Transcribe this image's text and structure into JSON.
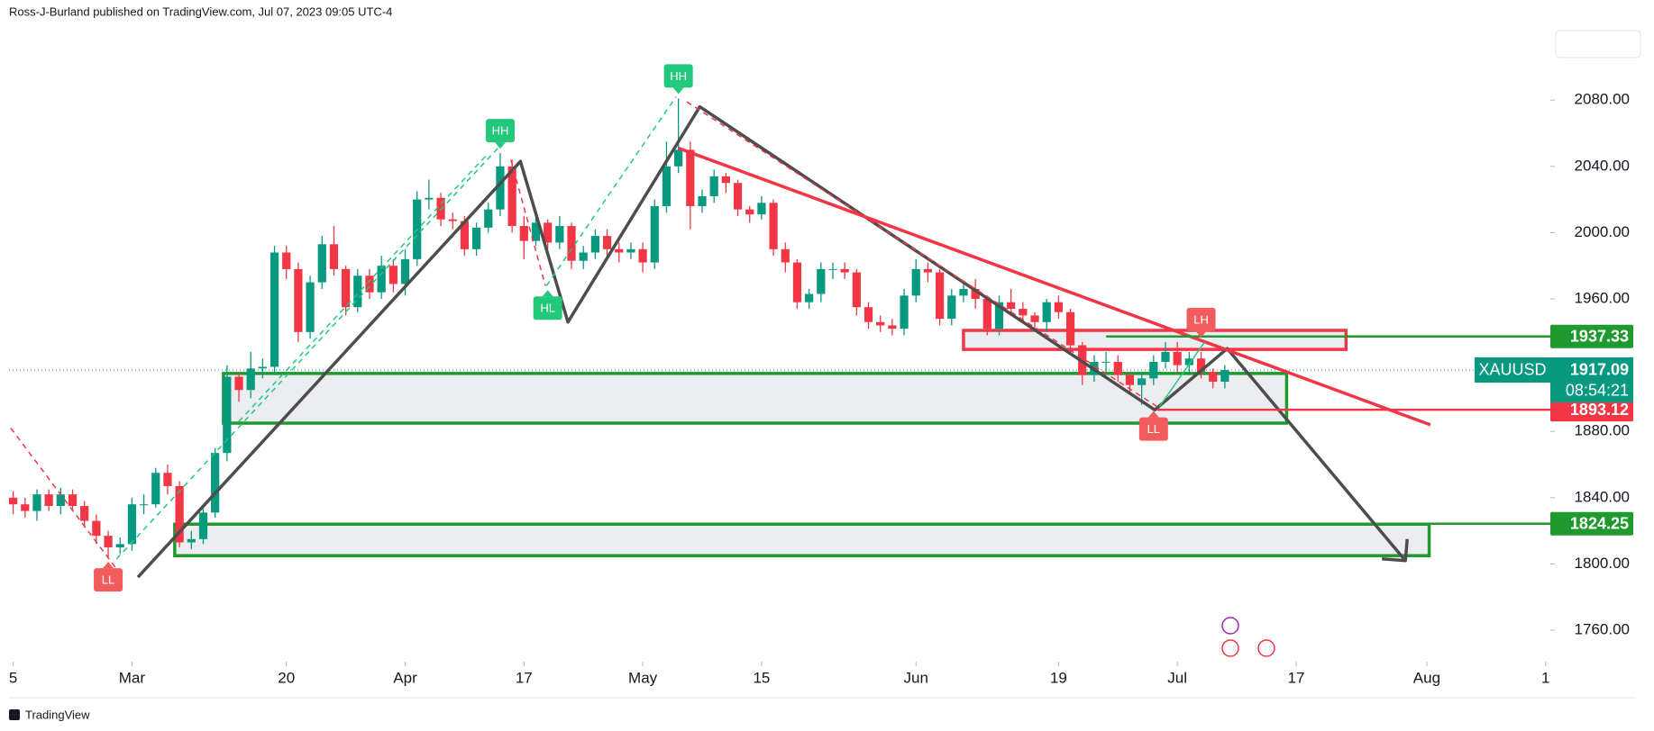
{
  "header": {
    "byline": "Ross-J-Burland published on TradingView.com, Jul 07, 2023 09:05 UTC-4"
  },
  "footer": {
    "brand": "TradingView"
  },
  "chart_data": {
    "type": "candlestick",
    "symbol": "XAUUSD",
    "countdown": "08:54:21",
    "up_color": "#089981",
    "down_color": "#f23645",
    "x": [
      0,
      1,
      2,
      3,
      4,
      5,
      6,
      7,
      8,
      9,
      10,
      11,
      12,
      13,
      14,
      15,
      16,
      17,
      18,
      19,
      20,
      21,
      22,
      23,
      24,
      25,
      26,
      27,
      28,
      29,
      30,
      31,
      32,
      33,
      34,
      35,
      36,
      37,
      38,
      39,
      40,
      41,
      42,
      43,
      44,
      45,
      46,
      47,
      48,
      49,
      50,
      51,
      52,
      53,
      54,
      55,
      56,
      57,
      58,
      59,
      60,
      61,
      62,
      63,
      64,
      65,
      66,
      67,
      68,
      69,
      70,
      71,
      72,
      73,
      74,
      75,
      76,
      77,
      78,
      79,
      80,
      81,
      82,
      83,
      84,
      85,
      86,
      87,
      88,
      89,
      90,
      91,
      92,
      93,
      94,
      95,
      96,
      97,
      98,
      99,
      100,
      101,
      102
    ],
    "open": [
      1840,
      1836,
      1832,
      1842,
      1835,
      1842,
      1835,
      1826,
      1817,
      1810,
      1812,
      1836,
      1836,
      1855,
      1847,
      1813,
      1815,
      1831,
      1867,
      1913,
      1905,
      1918,
      1919,
      1988,
      1978,
      1940,
      1970,
      1993,
      1978,
      1955,
      1974,
      1964,
      1980,
      1969,
      1984,
      2020,
      2021,
      2008,
      2007,
      1990,
      2003,
      2014,
      2040,
      2004,
      1995,
      2006,
      1994,
      2004,
      1983,
      1988,
      1998,
      1990,
      1988,
      1990,
      1982,
      2016,
      2040,
      2050,
      2016,
      2022,
      2034,
      2030,
      2014,
      2011,
      2018,
      1990,
      1982,
      1958,
      1963,
      1978,
      1978,
      1976,
      1955,
      1946,
      1944,
      1942,
      1962,
      1978,
      1976,
      1948,
      1962,
      1966,
      1960,
      1942,
      1958,
      1954,
      1950,
      1946,
      1958,
      1952,
      1932,
      1914,
      1922,
      1922,
      1914,
      1908,
      1912,
      1922,
      1928,
      1920,
      1924,
      1916,
      1910
    ],
    "high": [
      1844,
      1840,
      1845,
      1845,
      1846,
      1845,
      1838,
      1830,
      1820,
      1816,
      1840,
      1842,
      1858,
      1860,
      1850,
      1820,
      1835,
      1870,
      1920,
      1916,
      1928,
      1924,
      1992,
      1992,
      1982,
      1974,
      1998,
      2004,
      1980,
      1978,
      1978,
      1986,
      1984,
      1990,
      2025,
      2032,
      2024,
      2012,
      2010,
      2006,
      2018,
      2048,
      2044,
      2010,
      2010,
      2008,
      2010,
      2006,
      1992,
      2002,
      2002,
      1994,
      1994,
      1994,
      2020,
      2055,
      2081,
      2055,
      2026,
      2038,
      2036,
      2032,
      2016,
      2022,
      2020,
      1994,
      1984,
      1966,
      1982,
      1982,
      1982,
      1978,
      1958,
      1950,
      1948,
      1966,
      1984,
      1982,
      1978,
      1966,
      1970,
      1972,
      1962,
      1962,
      1966,
      1958,
      1952,
      1960,
      1962,
      1954,
      1934,
      1926,
      1928,
      1926,
      1916,
      1916,
      1926,
      1934,
      1934,
      1928,
      1928,
      1918,
      1920
    ],
    "low": [
      1830,
      1828,
      1826,
      1832,
      1830,
      1832,
      1822,
      1812,
      1804,
      1806,
      1808,
      1830,
      1834,
      1842,
      1810,
      1809,
      1812,
      1828,
      1862,
      1898,
      1900,
      1912,
      1915,
      1972,
      1934,
      1936,
      1966,
      1974,
      1950,
      1952,
      1960,
      1960,
      1964,
      1962,
      1980,
      2014,
      2004,
      2002,
      1986,
      1986,
      2000,
      2010,
      2000,
      1984,
      1992,
      1990,
      1990,
      1978,
      1978,
      1984,
      1986,
      1982,
      1984,
      1976,
      1978,
      2012,
      2036,
      2002,
      2012,
      2018,
      2024,
      2010,
      2006,
      2008,
      1986,
      1976,
      1954,
      1954,
      1958,
      1972,
      1972,
      1950,
      1942,
      1940,
      1938,
      1938,
      1958,
      1970,
      1944,
      1944,
      1958,
      1954,
      1938,
      1938,
      1950,
      1946,
      1942,
      1940,
      1948,
      1926,
      1908,
      1910,
      1916,
      1910,
      1902,
      1896,
      1908,
      1918,
      1916,
      1914,
      1912,
      1906,
      1906
    ],
    "close": [
      1836,
      1832,
      1842,
      1835,
      1842,
      1835,
      1826,
      1817,
      1810,
      1812,
      1836,
      1836,
      1855,
      1847,
      1813,
      1815,
      1831,
      1867,
      1913,
      1905,
      1918,
      1919,
      1988,
      1978,
      1940,
      1970,
      1993,
      1978,
      1955,
      1974,
      1964,
      1980,
      1969,
      1984,
      2020,
      2021,
      2008,
      2007,
      1990,
      2003,
      2014,
      2040,
      2004,
      1995,
      2006,
      1994,
      2004,
      1983,
      1988,
      1998,
      1990,
      1988,
      1990,
      1982,
      2016,
      2040,
      2050,
      2016,
      2022,
      2034,
      2030,
      2014,
      2011,
      2018,
      1990,
      1982,
      1958,
      1963,
      1978,
      1978,
      1976,
      1955,
      1946,
      1944,
      1942,
      1962,
      1978,
      1976,
      1948,
      1962,
      1966,
      1960,
      1942,
      1958,
      1954,
      1950,
      1946,
      1958,
      1952,
      1932,
      1914,
      1922,
      1922,
      1914,
      1908,
      1912,
      1922,
      1928,
      1920,
      1924,
      1916,
      1910,
      1917.09
    ],
    "xlim": [
      -0.35,
      129.4
    ],
    "xticks": [
      {
        "value": 0,
        "label": "5"
      },
      {
        "value": 10,
        "label": "Mar"
      },
      {
        "value": 23,
        "label": "20"
      },
      {
        "value": 33,
        "label": "Apr"
      },
      {
        "value": 43,
        "label": "17"
      },
      {
        "value": 53,
        "label": "May"
      },
      {
        "value": 63,
        "label": "15"
      },
      {
        "value": 76,
        "label": "Jun"
      },
      {
        "value": 88,
        "label": "19"
      },
      {
        "value": 98,
        "label": "Jul"
      },
      {
        "value": 108,
        "label": "17"
      },
      {
        "value": 119,
        "label": "Aug"
      },
      {
        "value": 129,
        "label": "1"
      }
    ],
    "ylim": [
      1741,
      2135
    ],
    "yticks": [
      {
        "value": 1760,
        "label": "1760.00"
      },
      {
        "value": 1800,
        "label": "1800.00"
      },
      {
        "value": 1840,
        "label": "1840.00"
      },
      {
        "value": 1880,
        "label": "1880.00"
      },
      {
        "value": 1960,
        "label": "1960.00"
      },
      {
        "value": 2000,
        "label": "2000.00"
      },
      {
        "value": 2040,
        "label": "2040.00"
      },
      {
        "value": 2080,
        "label": "2080.00"
      }
    ],
    "zones": [
      {
        "color": "#1e9a2e",
        "x": [
          17.7,
          107.2
        ],
        "y": [
          1885,
          1915
        ]
      },
      {
        "color": "#1e9a2e",
        "x": [
          13.6,
          119.2
        ],
        "y": [
          1805,
          1824
        ]
      },
      {
        "color": "#f23645",
        "x": [
          80,
          112.2
        ],
        "y": [
          1929.5,
          1941
        ]
      }
    ],
    "lines": [
      {
        "color": "#4d4d4d",
        "width": 3.5,
        "dash": false,
        "arrow": true,
        "x": [
          10.5,
          42.7,
          46.7,
          57.8,
          96.1,
          102.2,
          117.2
        ],
        "y": [
          1792,
          2043,
          1946,
          2076,
          1893,
          1930,
          1802
        ]
      },
      {
        "color": "#f23645",
        "width": 3.5,
        "dash": false,
        "arrow": false,
        "x": [
          56,
          119.3
        ],
        "y": [
          2051,
          1884
        ]
      },
      {
        "color": "#f23645",
        "width": 1.5,
        "dash": true,
        "arrow": false,
        "x": [
          -0.2,
          8.7
        ],
        "y": [
          1882,
          1797
        ]
      },
      {
        "color": "#f23645",
        "width": 1.5,
        "dash": true,
        "arrow": false,
        "x": [
          41.9,
          44.8
        ],
        "y": [
          2044,
          1968
        ]
      },
      {
        "color": "#f23645",
        "width": 1.5,
        "dash": true,
        "arrow": false,
        "x": [
          56.7,
          96.3
        ],
        "y": [
          2079,
          1895
        ]
      },
      {
        "color": "#22c97a",
        "width": 1.5,
        "dash": true,
        "arrow": false,
        "x": [
          8.7,
          40.8
        ],
        "y": [
          1803,
          2051
        ]
      },
      {
        "color": "#22c97a",
        "width": 1.5,
        "dash": true,
        "arrow": false,
        "x": [
          19,
          40
        ],
        "y": [
          1886,
          2048
        ]
      },
      {
        "color": "#22c97a",
        "width": 1.5,
        "dash": true,
        "arrow": false,
        "x": [
          44.9,
          55.8
        ],
        "y": [
          1968,
          2082
        ]
      },
      {
        "color": "#22c97a",
        "width": 1.5,
        "dash": false,
        "arrow": false,
        "x": [
          96.5,
          100.3
        ],
        "y": [
          1895,
          1934
        ]
      }
    ],
    "levels": [
      {
        "value": 1937.33,
        "x": 92,
        "color": "#1e9a2e"
      },
      {
        "value": 1893.12,
        "x": 96.3,
        "color": "#f23645"
      },
      {
        "value": 1824.25,
        "x": 119.2,
        "color": "#1e9a2e"
      }
    ],
    "markers": [
      {
        "label": "LL",
        "x": 8,
        "y": 1804,
        "side": "below",
        "color": "#f25c5c"
      },
      {
        "label": "HH",
        "x": 41,
        "y": 2048,
        "side": "above",
        "color": "#22c97a"
      },
      {
        "label": "HL",
        "x": 45,
        "y": 1968,
        "side": "below",
        "color": "#22c97a"
      },
      {
        "label": "HH",
        "x": 56,
        "y": 2081,
        "side": "above",
        "color": "#22c97a"
      },
      {
        "label": "LH",
        "x": 100,
        "y": 1934,
        "side": "above",
        "color": "#f25c5c"
      },
      {
        "label": "LL",
        "x": 96,
        "y": 1895,
        "side": "below",
        "color": "#f25c5c"
      }
    ]
  }
}
